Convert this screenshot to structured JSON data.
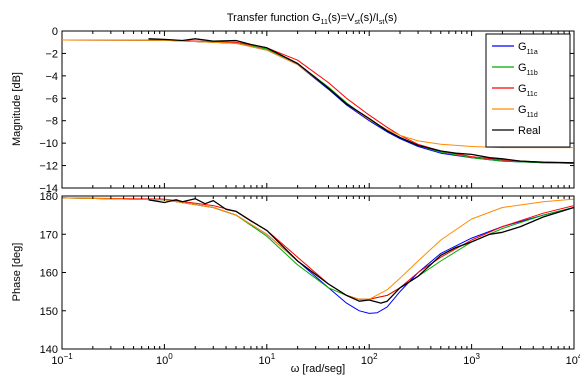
{
  "chart_data": [
    {
      "type": "line",
      "title": "Transfer function  G11(s)=Vst(s)/Ist(s)",
      "title_parts": {
        "main": "Transfer function  G",
        "g_sub": "11",
        "mid": "(s)=V",
        "v_sub": "st",
        "mid2": "(s)/I",
        "i_sub": "st",
        "end": "(s)"
      },
      "xlabel": "ω [rad/seg]",
      "ylabel": "Magnitude [dB]",
      "xscale": "log",
      "xlim": [
        0.1,
        10000
      ],
      "ylim": [
        -14,
        0
      ],
      "yticks": [
        0,
        -2,
        -4,
        -6,
        -8,
        -10,
        -12,
        -14
      ],
      "ytick_labels": [
        "0",
        "−2",
        "−4",
        "−6",
        "−8",
        "−10",
        "−12",
        "−14"
      ],
      "grid": false,
      "legend_position": "top-right",
      "series": [
        {
          "name": "G11a",
          "label_main": "G",
          "label_sub": "11a",
          "color": "#0000ff",
          "x": [
            0.1,
            1,
            5,
            10,
            20,
            40,
            60,
            100,
            150,
            200,
            300,
            500,
            1000,
            2000,
            5000,
            10000
          ],
          "y": [
            -0.8,
            -0.82,
            -1.1,
            -1.7,
            -3.0,
            -5.2,
            -6.6,
            -8.0,
            -9.0,
            -9.6,
            -10.3,
            -10.9,
            -11.3,
            -11.6,
            -11.75,
            -11.8
          ]
        },
        {
          "name": "G11b",
          "label_main": "G",
          "label_sub": "11b",
          "color": "#00aa00",
          "x": [
            0.1,
            1,
            5,
            10,
            20,
            40,
            60,
            100,
            150,
            200,
            300,
            500,
            1000,
            2000,
            5000,
            10000
          ],
          "y": [
            -0.8,
            -0.82,
            -1.1,
            -1.6,
            -2.9,
            -5.0,
            -6.4,
            -7.9,
            -8.9,
            -9.5,
            -10.2,
            -10.8,
            -11.3,
            -11.6,
            -11.75,
            -11.8
          ]
        },
        {
          "name": "G11c",
          "label_main": "G",
          "label_sub": "11c",
          "color": "#ff0000",
          "x": [
            0.1,
            1,
            5,
            10,
            20,
            40,
            60,
            100,
            150,
            200,
            300,
            500,
            1000,
            2000,
            5000,
            10000
          ],
          "y": [
            -0.8,
            -0.81,
            -1.0,
            -1.5,
            -2.6,
            -4.6,
            -6.0,
            -7.5,
            -8.6,
            -9.3,
            -10.1,
            -10.7,
            -11.2,
            -11.5,
            -11.7,
            -11.8
          ]
        },
        {
          "name": "G11d",
          "label_main": "G",
          "label_sub": "11d",
          "color": "#ff8c00",
          "x": [
            0.1,
            1,
            5,
            10,
            20,
            40,
            60,
            100,
            150,
            200,
            300,
            500,
            1000,
            2000,
            5000,
            10000
          ],
          "y": [
            -0.8,
            -0.82,
            -1.1,
            -1.7,
            -3.0,
            -5.1,
            -6.5,
            -7.9,
            -8.8,
            -9.3,
            -9.8,
            -10.1,
            -10.3,
            -10.4,
            -10.4,
            -10.4
          ]
        },
        {
          "name": "Real",
          "label_main": "Real",
          "label_sub": "",
          "color": "#000000",
          "x": [
            0.7,
            1,
            1.5,
            2,
            3,
            5,
            7,
            10,
            20,
            40,
            60,
            100,
            150,
            200,
            300,
            500,
            700,
            1000,
            1500,
            2000,
            3000,
            5000,
            10000
          ],
          "y": [
            -0.7,
            -0.75,
            -0.85,
            -0.7,
            -0.9,
            -0.85,
            -1.2,
            -1.5,
            -2.9,
            -5.1,
            -6.5,
            -7.8,
            -8.9,
            -9.5,
            -10.2,
            -10.7,
            -10.9,
            -11.0,
            -11.3,
            -11.4,
            -11.6,
            -11.7,
            -11.75
          ]
        }
      ]
    },
    {
      "type": "line",
      "xlabel": "ω [rad/seg]",
      "ylabel": "Phase [deg]",
      "xscale": "log",
      "xlim": [
        0.1,
        10000
      ],
      "ylim": [
        140,
        180
      ],
      "yticks": [
        140,
        150,
        160,
        170,
        180
      ],
      "ytick_labels": [
        "140",
        "150",
        "160",
        "170",
        "180"
      ],
      "xticks": [
        0.1,
        1,
        10,
        100,
        1000,
        10000
      ],
      "xtick_labels": [
        {
          "base": "10",
          "exp": "−1"
        },
        {
          "base": "10",
          "exp": "0"
        },
        {
          "base": "10",
          "exp": "1"
        },
        {
          "base": "10",
          "exp": "2"
        },
        {
          "base": "10",
          "exp": "3"
        },
        {
          "base": "10",
          "exp": "4"
        }
      ],
      "grid": false,
      "series": [
        {
          "name": "G11a",
          "color": "#0000ff",
          "x": [
            0.1,
            1,
            3,
            5,
            10,
            20,
            40,
            60,
            80,
            100,
            120,
            150,
            200,
            300,
            500,
            1000,
            2000,
            5000,
            10000
          ],
          "y": [
            179.5,
            179.0,
            177.0,
            175.0,
            170.0,
            163.0,
            156.0,
            152.0,
            150.0,
            149.3,
            149.5,
            151.0,
            155.0,
            160.0,
            165.0,
            169.0,
            172.0,
            175.0,
            177.0
          ]
        },
        {
          "name": "G11b",
          "color": "#00aa00",
          "x": [
            0.1,
            1,
            3,
            5,
            10,
            20,
            40,
            60,
            80,
            100,
            150,
            200,
            300,
            500,
            1000,
            2000,
            5000,
            10000
          ],
          "y": [
            179.5,
            179.0,
            177.0,
            175.0,
            169.5,
            162.0,
            156.0,
            154.0,
            153.0,
            153.0,
            154.0,
            156.0,
            159.0,
            163.0,
            168.0,
            171.5,
            175.0,
            177.0
          ]
        },
        {
          "name": "G11c",
          "color": "#ff0000",
          "x": [
            0.1,
            1,
            3,
            5,
            10,
            20,
            40,
            60,
            80,
            100,
            150,
            200,
            300,
            500,
            1000,
            2000,
            5000,
            10000
          ],
          "y": [
            179.5,
            179.2,
            177.5,
            176.0,
            171.0,
            164.0,
            157.0,
            154.0,
            153.0,
            153.0,
            154.0,
            156.0,
            160.0,
            164.0,
            168.5,
            172.0,
            175.5,
            177.5
          ]
        },
        {
          "name": "G11d",
          "color": "#ff8c00",
          "x": [
            0.1,
            1,
            3,
            5,
            10,
            20,
            40,
            60,
            80,
            100,
            150,
            200,
            300,
            500,
            1000,
            2000,
            5000,
            10000
          ],
          "y": [
            179.5,
            179.0,
            177.0,
            175.0,
            170.0,
            163.0,
            157.0,
            154.0,
            153.0,
            153.0,
            155.5,
            158.5,
            163.0,
            168.5,
            174.0,
            177.0,
            178.5,
            179.2
          ]
        },
        {
          "name": "Real",
          "color": "#000000",
          "x": [
            0.7,
            1,
            1.3,
            1.5,
            2,
            2.5,
            3,
            4,
            5,
            7,
            10,
            20,
            40,
            60,
            80,
            100,
            130,
            150,
            200,
            300,
            500,
            700,
            1000,
            1500,
            2000,
            3000,
            5000,
            10000
          ],
          "y": [
            179.0,
            178.3,
            179.0,
            178.5,
            179.3,
            178.0,
            178.8,
            176.5,
            176.0,
            173.5,
            171.0,
            163.0,
            157.0,
            154.0,
            152.5,
            152.8,
            152.0,
            152.5,
            156.0,
            159.0,
            164.5,
            166.5,
            168.0,
            170.0,
            170.5,
            172.0,
            174.5,
            177.0
          ]
        }
      ]
    }
  ]
}
